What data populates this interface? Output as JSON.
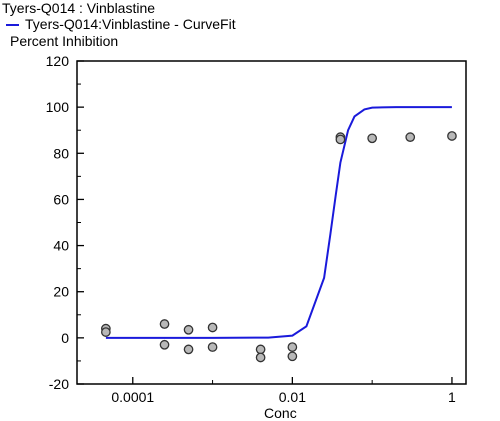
{
  "title": "Tyers-Q014  : Vinblastine",
  "legend": {
    "entries": [
      "Tyers-Q014:Vinblastine - CurveFit"
    ]
  },
  "colors": {
    "curve": "#1a1adb",
    "point_fill": "#b8b8b8",
    "point_stroke": "#333333",
    "axis": "#000000"
  },
  "chart_data": {
    "type": "scatter",
    "xscale": "log",
    "xlabel": "Conc",
    "ylabel": "Percent Inhibition",
    "xlim": [
      2e-05,
      1.5
    ],
    "ylim": [
      -20,
      120
    ],
    "xticks": [
      {
        "value": 0.0001,
        "label": "0.0001"
      },
      {
        "value": 0.01,
        "label": "0.01"
      },
      {
        "value": 1,
        "label": "1"
      }
    ],
    "yticks": [
      {
        "value": -20,
        "label": "-20"
      },
      {
        "value": 0,
        "label": "0"
      },
      {
        "value": 20,
        "label": "20"
      },
      {
        "value": 40,
        "label": "40"
      },
      {
        "value": 60,
        "label": "60"
      },
      {
        "value": 80,
        "label": "80"
      },
      {
        "value": 100,
        "label": "100"
      },
      {
        "value": 120,
        "label": "120"
      }
    ],
    "series": [
      {
        "name": "Tyers-Q014:Vinblastine - CurveFit",
        "kind": "line",
        "x": [
          4.6e-05,
          0.0001,
          0.001,
          0.005,
          0.01,
          0.015,
          0.025,
          0.03,
          0.035,
          0.04,
          0.05,
          0.06,
          0.08,
          0.1,
          0.2,
          1
        ],
        "y": [
          0,
          0,
          0,
          0.1,
          1,
          5,
          26,
          45,
          62,
          76,
          90,
          96,
          99,
          99.8,
          100,
          100
        ]
      },
      {
        "kind": "points",
        "x": [
          4.6e-05,
          4.6e-05,
          0.00025,
          0.00025,
          0.0005,
          0.0005,
          0.001,
          0.001,
          0.004,
          0.004,
          0.01,
          0.01,
          0.04,
          0.04,
          0.1,
          0.3,
          1
        ],
        "y": [
          4,
          2.5,
          6,
          -3,
          3.5,
          -5,
          4.5,
          -4,
          -5,
          -8.5,
          -4,
          -8,
          87,
          86,
          86.5,
          87,
          87.5
        ]
      }
    ]
  }
}
